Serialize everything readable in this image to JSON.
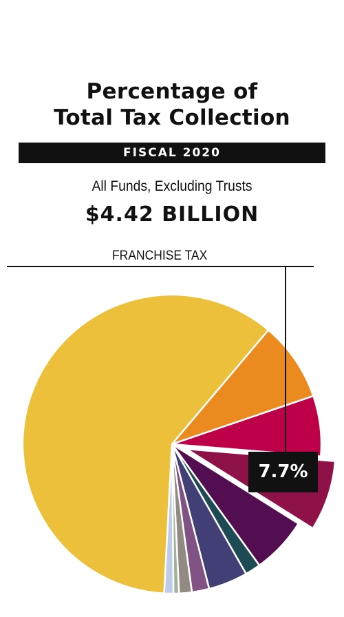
{
  "header": {
    "title_line1": "Percentage of",
    "title_line2": "Total Tax Collection",
    "fiscal_label": "FISCAL 2020",
    "subtitle": "All Funds, Excluding Trusts",
    "total": "$4.42 BILLION"
  },
  "callout": {
    "label": "FRANCHISE TAX",
    "value_label": "7.7%"
  },
  "chart_data": {
    "type": "pie",
    "title": "Percentage of Total Tax Collection",
    "slices": [
      {
        "value": 61.0,
        "color": "#ECC03A",
        "exploded": false
      },
      {
        "value": 8.7,
        "color": "#EB8A1E",
        "exploded": false
      },
      {
        "value": 6.6,
        "color": "#BE0048",
        "exploded": false
      },
      {
        "value": 7.7,
        "color": "#8E1148",
        "exploded": true
      },
      {
        "value": 6.2,
        "color": "#520E50",
        "exploded": false
      },
      {
        "value": 1.7,
        "color": "#1E4A55",
        "exploded": false
      },
      {
        "value": 4.3,
        "color": "#413F75",
        "exploded": false
      },
      {
        "value": 1.9,
        "color": "#815284",
        "exploded": false
      },
      {
        "value": 1.4,
        "color": "#908A82",
        "exploded": false
      },
      {
        "value": 0.6,
        "color": "#A2B29A",
        "exploded": false
      },
      {
        "value": 1.0,
        "color": "#BECCEA",
        "exploded": false
      }
    ]
  }
}
